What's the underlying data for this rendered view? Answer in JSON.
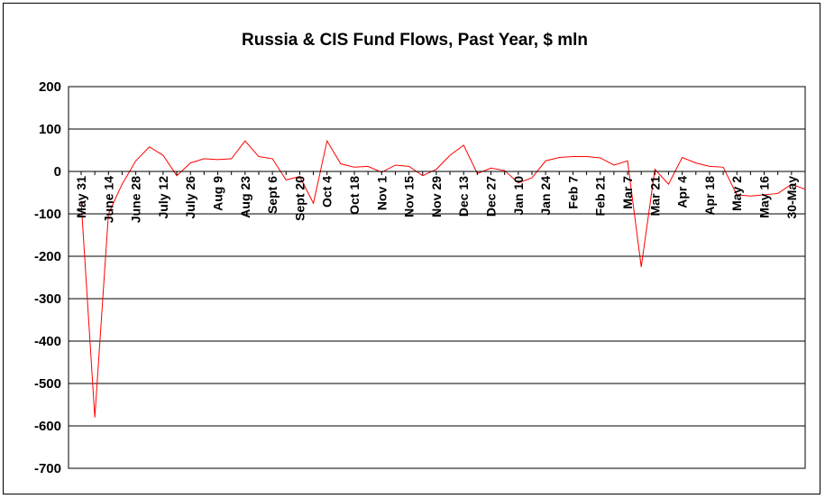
{
  "chart_data": {
    "type": "line",
    "title": "Russia & CIS Fund Flows, Past Year, $ mln",
    "xlabel": "",
    "ylabel": "",
    "ylim": [
      -700,
      200
    ],
    "yticks": [
      200,
      100,
      0,
      -100,
      -200,
      -300,
      -400,
      -500,
      -600,
      -700
    ],
    "grid": true,
    "legend": "none",
    "line_color": "#ff0000",
    "x_tick_labels": [
      "May 31",
      "June 14",
      "June 28",
      "July 12",
      "July 26",
      "Aug 9",
      "Aug 23",
      "Sept 6",
      "Sept 20",
      "Oct 4",
      "Oct 18",
      "Nov 1",
      "Nov 15",
      "Nov 29",
      "Dec 13",
      "Dec 27",
      "Jan 10",
      "Jan 24",
      "Feb 7",
      "Feb 21",
      "Mar 7",
      "Mar 21",
      "Apr 4",
      "Apr 18",
      "May 2",
      "May 16",
      "30-May"
    ],
    "values": [
      -70,
      -580,
      -100,
      -30,
      25,
      58,
      38,
      -10,
      20,
      30,
      28,
      30,
      72,
      35,
      30,
      -20,
      -12,
      -75,
      72,
      18,
      10,
      12,
      -2,
      15,
      12,
      -10,
      5,
      38,
      62,
      -5,
      8,
      2,
      -27,
      -15,
      25,
      33,
      35,
      35,
      32,
      15,
      25,
      -225,
      5,
      -30,
      33,
      20,
      12,
      10,
      -55,
      -58,
      -55,
      -52,
      -30,
      -42
    ]
  }
}
